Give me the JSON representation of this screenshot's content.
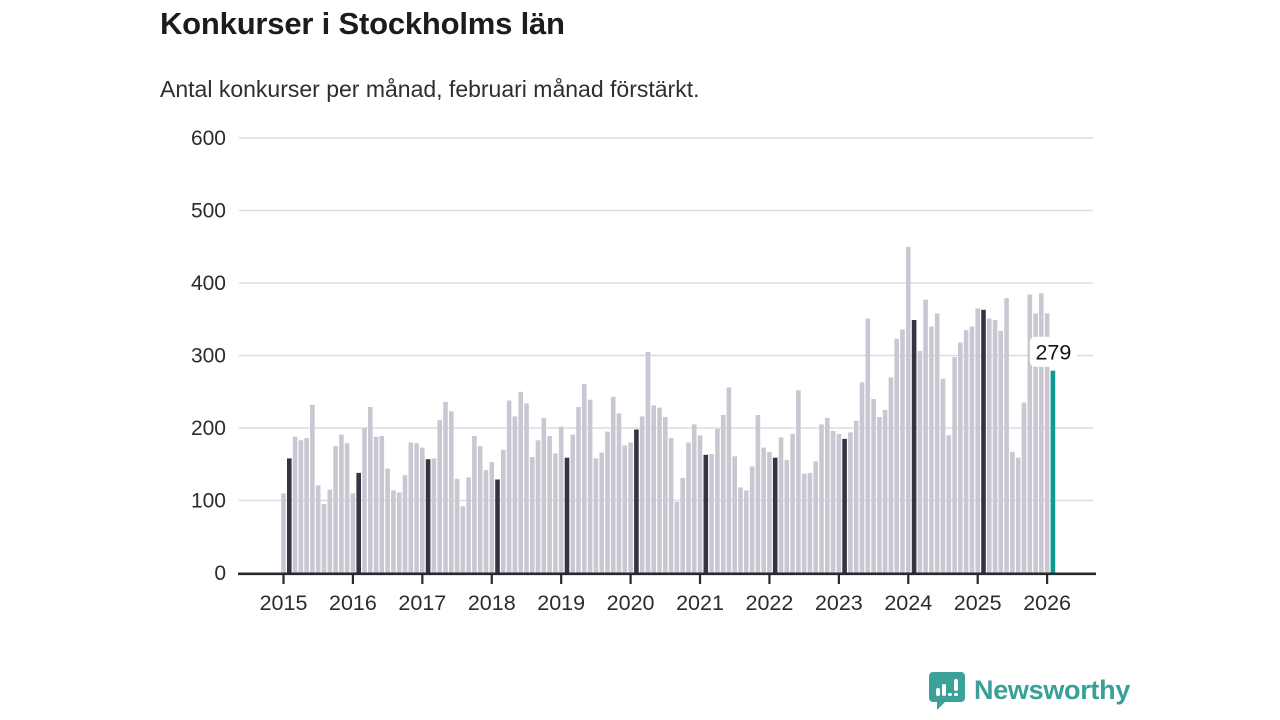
{
  "header": {
    "title": "Konkurser i Stockholms län",
    "subtitle": "Antal konkurser per månad, februari månad förstärkt."
  },
  "chart_data": {
    "type": "bar",
    "title": "Konkurser i Stockholms län",
    "subtitle": "Antal konkurser per månad, februari månad förstärkt.",
    "ylim": [
      0,
      600
    ],
    "yticks": [
      0,
      100,
      200,
      300,
      400,
      500,
      600
    ],
    "year_labels": [
      2015,
      2016,
      2017,
      2018,
      2019,
      2020,
      2021,
      2022,
      2023,
      2024,
      2025,
      2026
    ],
    "grid": "horizontal",
    "highlight_rule": "february bars darkened",
    "annotation": {
      "text": "279",
      "value": 279,
      "target": "2026-02"
    },
    "series": [
      {
        "year": 2015,
        "values": [
          110,
          158,
          188,
          183,
          186,
          232,
          121,
          95,
          115,
          175,
          191,
          179
        ]
      },
      {
        "year": 2016,
        "values": [
          110,
          138,
          200,
          229,
          188,
          189,
          144,
          114,
          111,
          135,
          180,
          179
        ]
      },
      {
        "year": 2017,
        "values": [
          173,
          157,
          158,
          211,
          236,
          223,
          130,
          92,
          132,
          189,
          175,
          142
        ]
      },
      {
        "year": 2018,
        "values": [
          153,
          129,
          170,
          238,
          216,
          250,
          234,
          160,
          183,
          214,
          189,
          165
        ]
      },
      {
        "year": 2019,
        "values": [
          202,
          159,
          191,
          229,
          261,
          239,
          158,
          166,
          195,
          243,
          220,
          176
        ]
      },
      {
        "year": 2020,
        "values": [
          180,
          198,
          216,
          305,
          231,
          228,
          215,
          186,
          98,
          131,
          180,
          205
        ]
      },
      {
        "year": 2021,
        "values": [
          190,
          163,
          164,
          199,
          218,
          256,
          161,
          118,
          114,
          147,
          218,
          173
        ]
      },
      {
        "year": 2022,
        "values": [
          167,
          159,
          187,
          156,
          192,
          252,
          137,
          138,
          154,
          205,
          214,
          196
        ]
      },
      {
        "year": 2023,
        "values": [
          192,
          185,
          194,
          210,
          263,
          351,
          240,
          215,
          225,
          270,
          323,
          336
        ]
      },
      {
        "year": 2024,
        "values": [
          450,
          349,
          306,
          377,
          340,
          358,
          268,
          190,
          298,
          318,
          335,
          340
        ]
      },
      {
        "year": 2025,
        "values": [
          365,
          363,
          351,
          349,
          334,
          379,
          167,
          159,
          235,
          384,
          358,
          386
        ]
      },
      {
        "year": 2026,
        "values": [
          358,
          279
        ]
      }
    ],
    "colors": {
      "bar_default": "#c9c8d2",
      "bar_february": "#363443",
      "bar_highlight": "#0d9b91",
      "gridline": "#dcdce2",
      "axis_line": "#28282d",
      "tick_text": "#2c2c2c",
      "annotation_text": "#141414",
      "annotation_bg": "#ffffff"
    }
  },
  "branding": {
    "logo_text": "Newsworthy",
    "logo_icon": "newsworthy-speech-bubble-bars-icon",
    "logo_color": "#3aa29a"
  }
}
